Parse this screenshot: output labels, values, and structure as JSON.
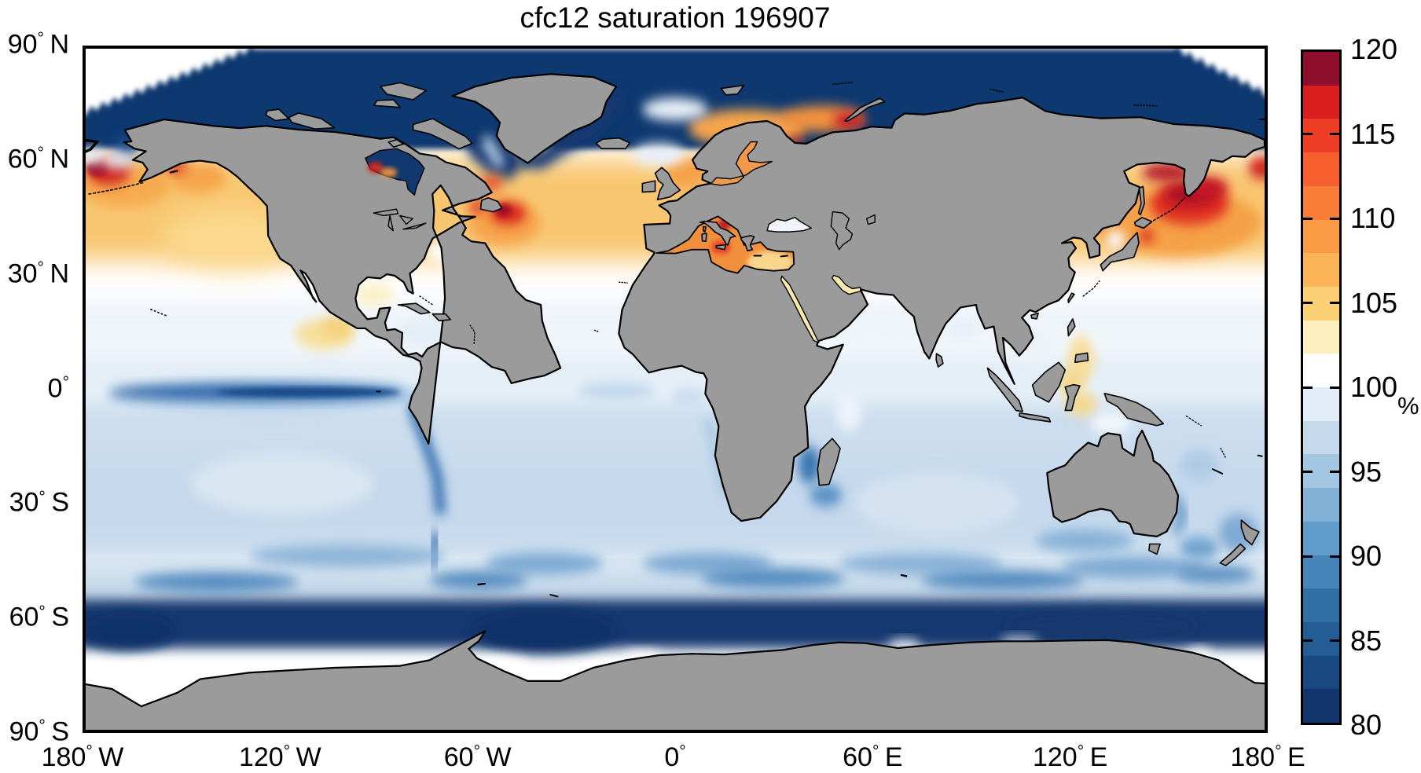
{
  "title": "cfc12 saturation 196907",
  "colors": {
    "land": "#9b9b9b",
    "coastline": "#000000",
    "ocean_white": "#ffffff",
    "arctic_navy": "#11386f",
    "warm_orange": "#f8c66f",
    "hot_red": "#d8281f",
    "dark_red": "#8e0e2b",
    "pale_blue": "#cbddee",
    "mid_blue": "#6fa0cc",
    "deep_blue": "#14386f",
    "axis_black": "#000000"
  },
  "x_axis": {
    "labels": [
      "180° W",
      "120° W",
      "60° W",
      "0°",
      "60° E",
      "120° E",
      "180° E"
    ]
  },
  "y_axis": {
    "labels": [
      "90° N",
      "60° N",
      "30° N",
      "0°",
      "30° S",
      "60° S",
      "90° S"
    ]
  },
  "colorbar": {
    "unit": "%",
    "tick_labels": [
      "120",
      "115",
      "110",
      "105",
      "100",
      "95",
      "90",
      "85",
      "80"
    ],
    "tick_values": [
      120,
      115,
      110,
      105,
      100,
      95,
      90,
      85,
      80
    ],
    "range": [
      80,
      120
    ],
    "segment_colors_low_to_high": [
      "#12366B",
      "#1A4880",
      "#245C94",
      "#3170A7",
      "#4585BA",
      "#619BC9",
      "#82B1D7",
      "#A3C6E2",
      "#C5D9EC",
      "#E3EDF7",
      "#FFFFFF",
      "#FEF0BE",
      "#FCD176",
      "#FBB457",
      "#FA9A44",
      "#F97E37",
      "#F75F2F",
      "#ED3D25",
      "#D91E20",
      "#BC1127"
    ],
    "top_color": "#8E0E2B"
  },
  "chart_data": {
    "type": "heatmap",
    "title": "cfc12 saturation 196907",
    "variable": "cfc12 saturation",
    "time_stamp": "196907",
    "units": "%",
    "projection": "equirectangular world map, land masked grey",
    "x": {
      "label": "longitude",
      "range": [
        -180,
        180
      ],
      "ticks": [
        -180,
        -120,
        -60,
        0,
        60,
        120,
        180
      ],
      "tick_labels": [
        "180° W",
        "120° W",
        "60° W",
        "0°",
        "60° E",
        "120° E",
        "180° E"
      ]
    },
    "y": {
      "label": "latitude",
      "range": [
        -90,
        90
      ],
      "ticks": [
        90,
        60,
        30,
        0,
        -30,
        -60,
        -90
      ],
      "tick_labels": [
        "90° N",
        "60° N",
        "30° N",
        "0°",
        "30° S",
        "60° S",
        "90° S"
      ]
    },
    "colorbar": {
      "range": [
        80,
        120
      ],
      "tick_interval": 5,
      "n_discrete_segments": 20,
      "unit": "%",
      "orientation": "vertical-right"
    },
    "grid": false,
    "legend_position": "right colorbar",
    "regional_values_percent": [
      {
        "region": "Arctic Ocean (north of ~72N)",
        "approx_value": 80
      },
      {
        "region": "Hudson Bay and Baffin Bay",
        "approx_value": 81
      },
      {
        "region": "Bering Sea hotspot",
        "approx_value": 116
      },
      {
        "region": "NW Pacific / Sea of Okhotsk / east of Kamchatka",
        "approx_value": 117
      },
      {
        "region": "North Pacific 30-55N",
        "approx_value": 106
      },
      {
        "region": "Gulf of Alaska",
        "approx_value": 108
      },
      {
        "region": "NW Atlantic off Newfoundland hotspot",
        "approx_value": 114
      },
      {
        "region": "North Atlantic 35-60N",
        "approx_value": 105
      },
      {
        "region": "Norwegian and Barents Seas",
        "approx_value": 108
      },
      {
        "region": "Barents hotspot near Novaya Zemlya",
        "approx_value": 114
      },
      {
        "region": "Mediterranean Sea",
        "approx_value": 108
      },
      {
        "region": "Adriatic hotspot",
        "approx_value": 115
      },
      {
        "region": "Subtropical belt 23-33N",
        "approx_value": 100
      },
      {
        "region": "Tropics 10N-10S",
        "approx_value": 97
      },
      {
        "region": "Equatorial East Pacific upwelling tongue",
        "approx_value": 84
      },
      {
        "region": "Peru-Chile coastal upwelling",
        "approx_value": 86
      },
      {
        "region": "South subtropical gyres 15-35S",
        "approx_value": 95
      },
      {
        "region": "Southern mid-latitudes 35-50S",
        "approx_value": 91
      },
      {
        "region": "Southern Ocean 55-68S",
        "approx_value": 81
      },
      {
        "region": "Antarctic coastal band (patches)",
        "approx_value": 99
      }
    ]
  }
}
